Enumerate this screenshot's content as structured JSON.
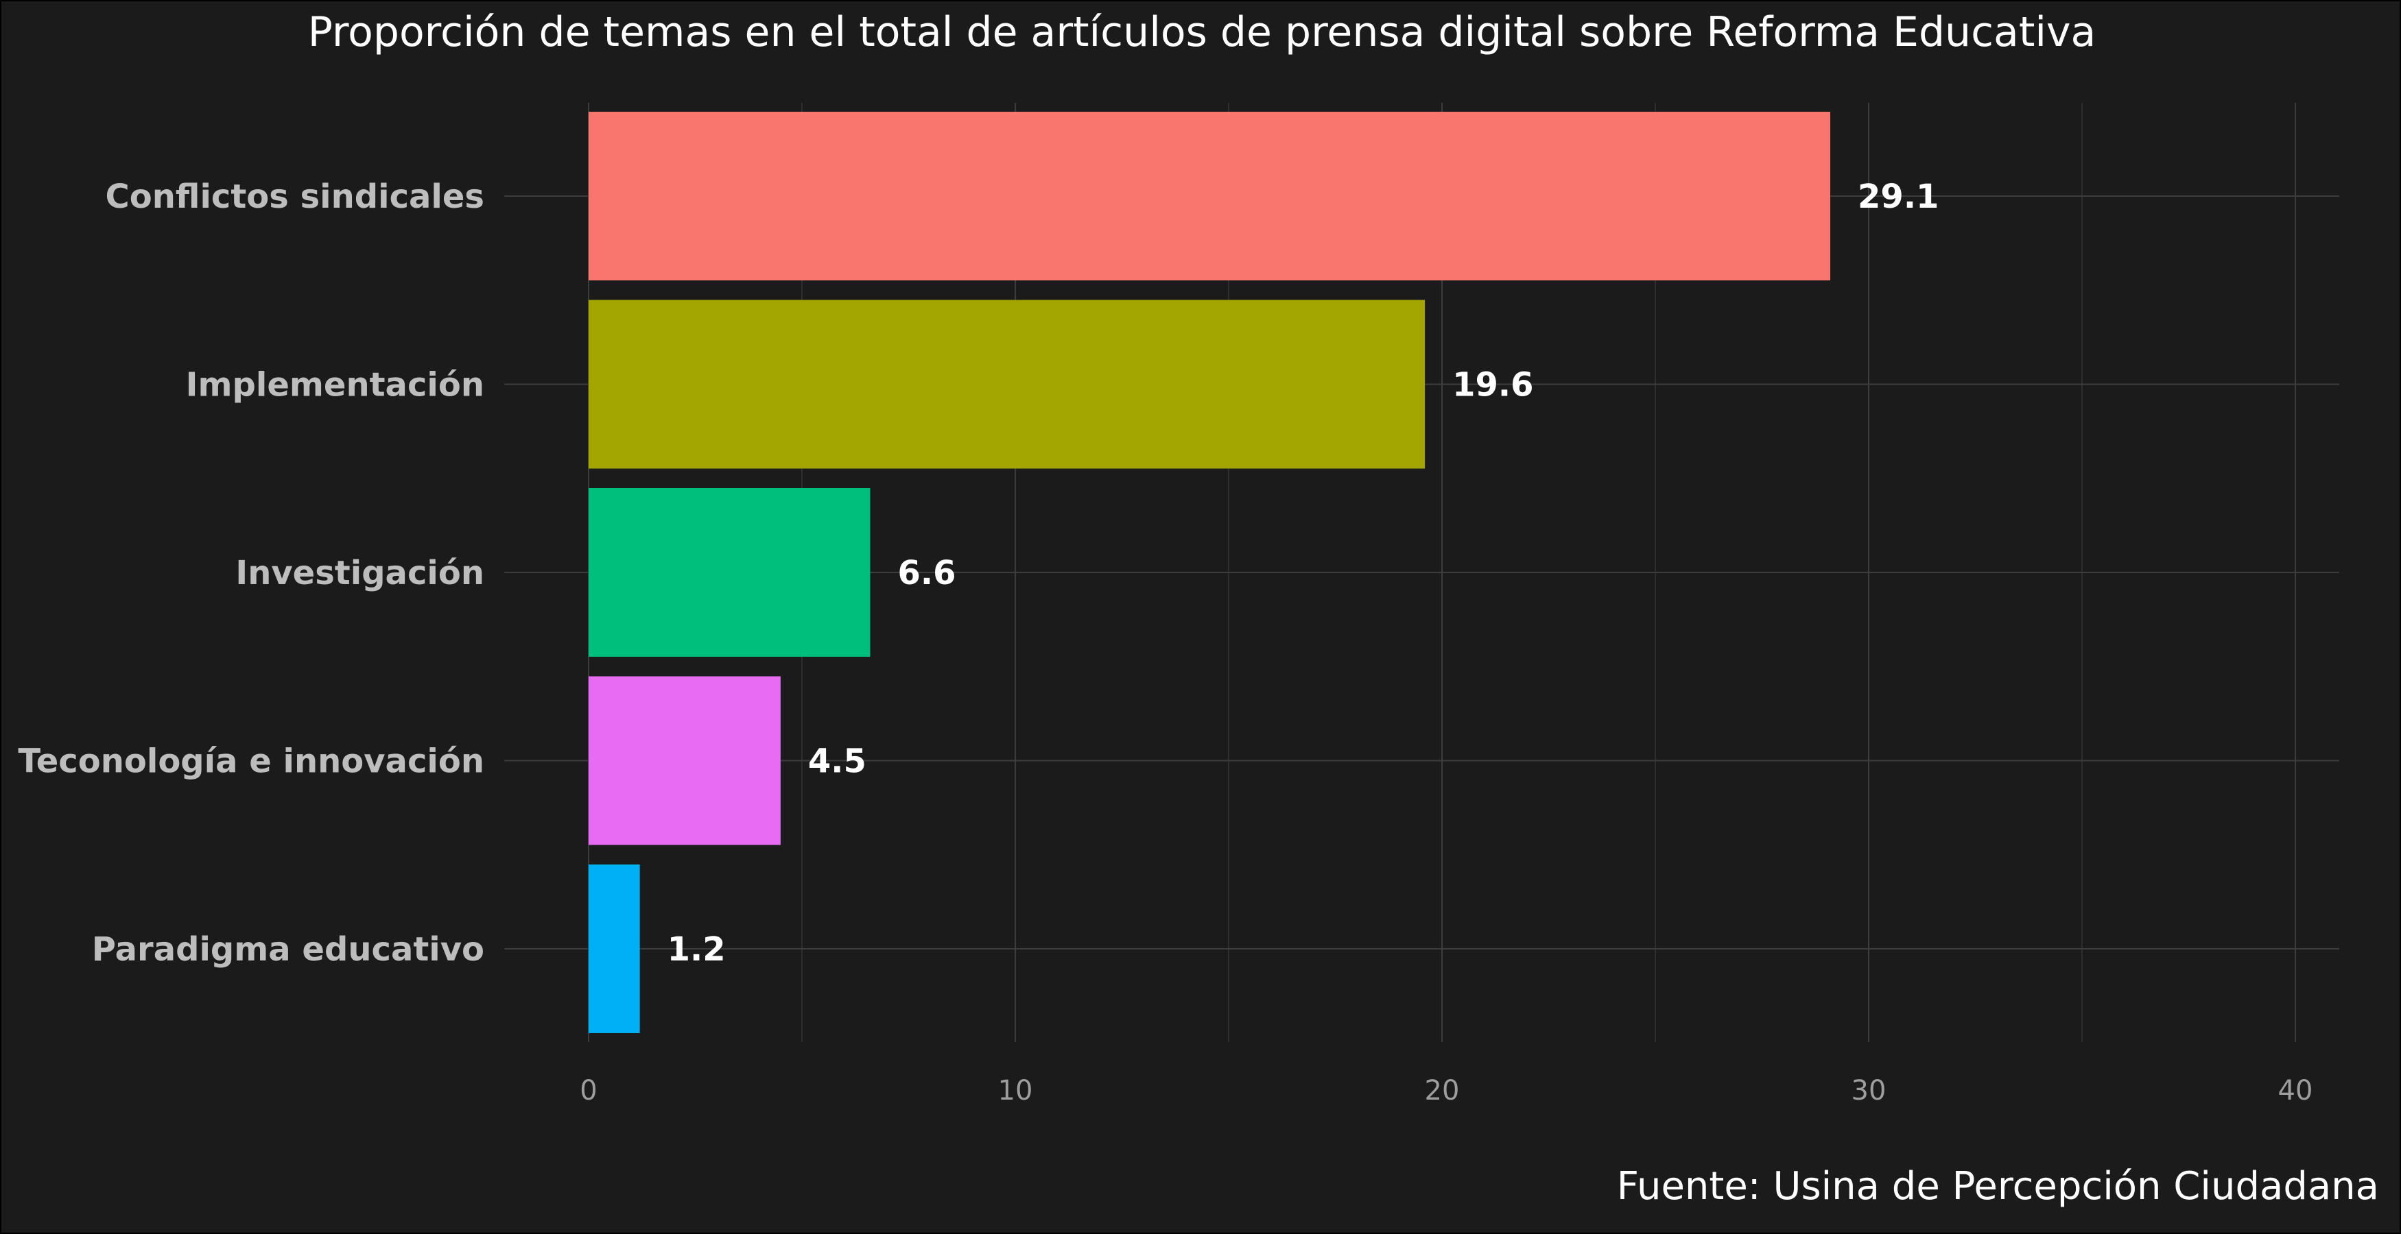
{
  "chart_data": {
    "type": "bar",
    "orientation": "horizontal",
    "title": "Proporción de temas en el total de artículos de prensa digital sobre Reforma Educativa",
    "caption": "Fuente: Usina de Percepción Ciudadana",
    "categories": [
      "Conflictos sindicales",
      "Implementación",
      "Investigación",
      "Teconología e innovación",
      "Paradigma educativo"
    ],
    "values": [
      29.1,
      19.6,
      6.6,
      4.5,
      1.2
    ],
    "value_labels": [
      "29.1",
      "19.6",
      "6.6",
      "4.5",
      "1.2"
    ],
    "colors": [
      "#f8766d",
      "#a3a500",
      "#00bf7d",
      "#e76bf3",
      "#00b0f6"
    ],
    "xticks": [
      0,
      10,
      20,
      30,
      40
    ],
    "tick_labels": [
      "0",
      "10",
      "20",
      "30",
      "40"
    ],
    "xlim": [
      0,
      40
    ],
    "xlabel": "",
    "ylabel": "",
    "grid": true,
    "legend": "none",
    "background": "#1b1b1b",
    "grid_color": "#3d3d3d"
  }
}
